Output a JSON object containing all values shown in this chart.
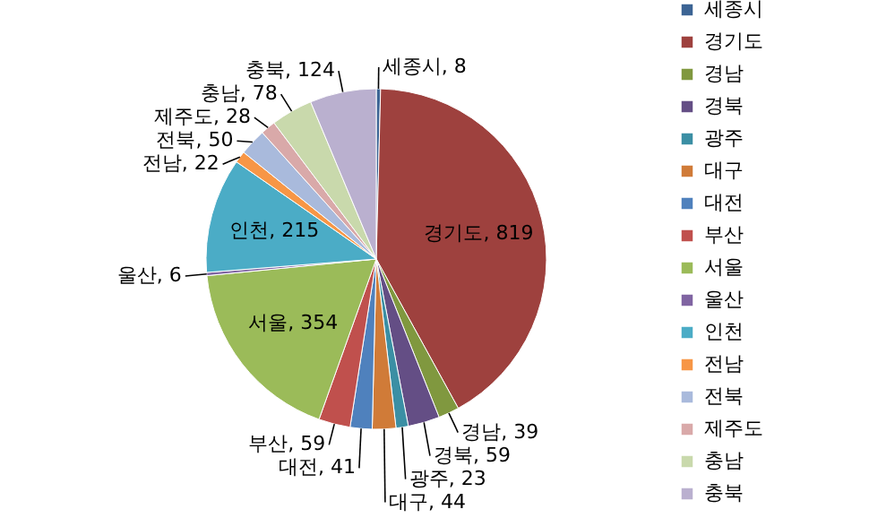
{
  "chart_data": {
    "type": "pie",
    "categories": [
      "세종시",
      "경기도",
      "경남",
      "경북",
      "광주",
      "대구",
      "대전",
      "부산",
      "서울",
      "울산",
      "인천",
      "전남",
      "전북",
      "제주도",
      "충남",
      "충북"
    ],
    "values": [
      8,
      819,
      39,
      59,
      23,
      44,
      41,
      59,
      354,
      6,
      215,
      22,
      50,
      28,
      78,
      124
    ],
    "value_labels": [
      "세종시, 8",
      "경기도, 819",
      "경남, 39",
      "경북, 59",
      "광주, 23",
      "대구, 44",
      "대전, 41",
      "부산, 59",
      "서울, 354",
      "울산, 6",
      "인천, 215",
      "전남, 22",
      "전북, 50",
      "제주도, 28",
      "충남, 78",
      "충북, 124"
    ],
    "colors": [
      "#3c6494",
      "#9e413e",
      "#80983f",
      "#644e85",
      "#3b8fa4",
      "#d07b38",
      "#4f81bd",
      "#c0504d",
      "#9bbb59",
      "#8064a2",
      "#4bacc6",
      "#f79646",
      "#a9badc",
      "#d9a9a9",
      "#c9d9ac",
      "#bab0cf"
    ],
    "legend": "right"
  }
}
